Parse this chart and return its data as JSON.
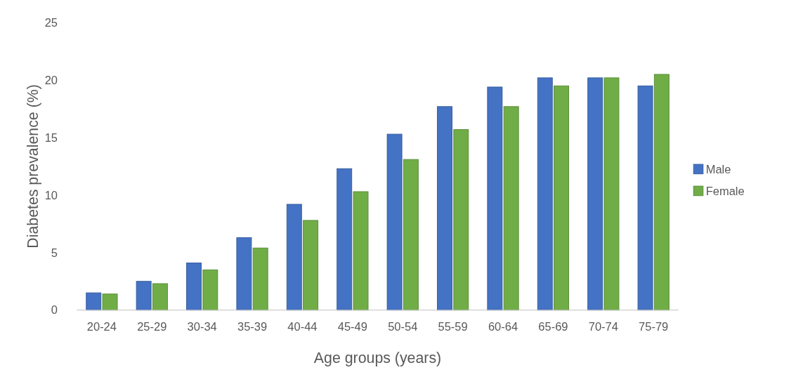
{
  "chart_data": {
    "type": "bar",
    "xlabel": "Age groups (years)",
    "ylabel": "Diabetes prevalence (%)",
    "categories": [
      "20-24",
      "25-29",
      "30-34",
      "35-39",
      "40-44",
      "45-49",
      "50-54",
      "55-59",
      "60-64",
      "65-69",
      "70-74",
      "75-79"
    ],
    "series": [
      {
        "name": "Male",
        "color": "#4472c4",
        "values": [
          1.5,
          2.5,
          4.1,
          6.3,
          9.2,
          12.3,
          15.3,
          17.7,
          19.4,
          20.2,
          20.2,
          19.5
        ]
      },
      {
        "name": "Female",
        "color": "#70ad47",
        "values": [
          1.4,
          2.3,
          3.5,
          5.4,
          7.8,
          10.3,
          13.1,
          15.7,
          17.7,
          19.5,
          20.2,
          20.5
        ]
      }
    ],
    "ylim": [
      0,
      25
    ],
    "yticks": [
      0,
      5,
      10,
      15,
      20,
      25
    ],
    "grid": false,
    "legend": "right"
  }
}
